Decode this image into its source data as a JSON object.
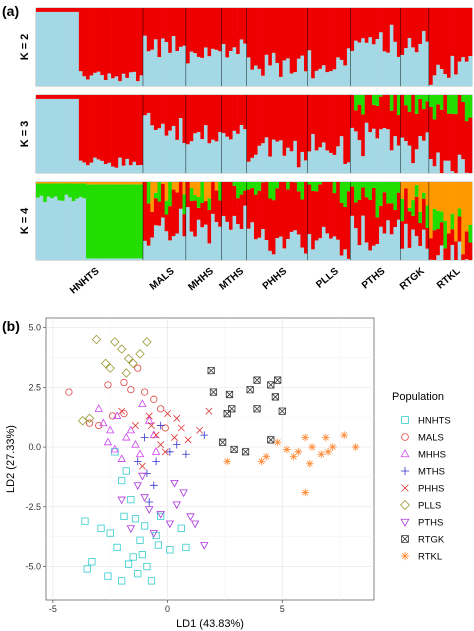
{
  "panel_labels": {
    "a": "(a)",
    "b": "(b)"
  },
  "chart_data": [
    {
      "type": "bar",
      "subtype": "stacked-bar-structure",
      "panel": "(a)",
      "rows": [
        {
          "label": "K = 2",
          "components": 2
        },
        {
          "label": "K = 3",
          "components": 3
        },
        {
          "label": "K = 4",
          "components": 4
        }
      ],
      "populations": [
        {
          "name": "HNHTS",
          "individuals": 30
        },
        {
          "name": "MALS",
          "individuals": 12
        },
        {
          "name": "MHHS",
          "individuals": 10
        },
        {
          "name": "MTHS",
          "individuals": 7
        },
        {
          "name": "PHHS",
          "individuals": 17
        },
        {
          "name": "PLLS",
          "individuals": 12
        },
        {
          "name": "PTHS",
          "individuals": 14
        },
        {
          "name": "RTGK",
          "individuals": 8
        },
        {
          "name": "RTKL",
          "individuals": 12
        }
      ],
      "colors": [
        "#a4d8e4",
        "#ee0000",
        "#22dd00",
        "#ff9900"
      ]
    },
    {
      "type": "scatter",
      "panel": "(b)",
      "xlabel": "LD1 (43.83%)",
      "ylabel": "LD2 (27.33%)",
      "xlim": [
        -5.3,
        9.0
      ],
      "ylim": [
        -6.4,
        5.4
      ],
      "xticks": [
        "-5",
        "0",
        "5"
      ],
      "yticks": [
        "5.0",
        "2.5",
        "0.0",
        "-2.5",
        "-5.0"
      ],
      "legend_title": "Population",
      "legend_position": "right",
      "grid": true,
      "series": [
        {
          "name": "HNHTS",
          "color": "#33cccc",
          "marker": "square",
          "points": [
            [
              -3.6,
              -3.1
            ],
            [
              -3.5,
              -5.1
            ],
            [
              -3.3,
              -4.8
            ],
            [
              -2.9,
              -3.4
            ],
            [
              -2.5,
              -3.6
            ],
            [
              -2.2,
              -4.2
            ],
            [
              -2.6,
              -5.4
            ],
            [
              -2.0,
              -5.6
            ],
            [
              -1.8,
              -1.0
            ],
            [
              -2.0,
              -1.4
            ],
            [
              -1.6,
              -2.2
            ],
            [
              -1.4,
              -3.0
            ],
            [
              -1.2,
              -3.9
            ],
            [
              -1.1,
              -4.5
            ],
            [
              -1.5,
              -4.6
            ],
            [
              -0.9,
              -5.0
            ],
            [
              -1.3,
              -5.3
            ],
            [
              -0.7,
              -5.6
            ],
            [
              -0.4,
              -4.1
            ],
            [
              -0.5,
              -3.7
            ],
            [
              -1.0,
              -3.3
            ],
            [
              -0.3,
              -2.9
            ],
            [
              0.6,
              -3.4
            ],
            [
              0.8,
              -4.2
            ],
            [
              0.1,
              -4.3
            ],
            [
              -1.9,
              -2.9
            ],
            [
              -2.3,
              -0.2
            ],
            [
              -1.7,
              -4.9
            ]
          ]
        },
        {
          "name": "MALS",
          "color": "#dd4444",
          "marker": "circle",
          "points": [
            [
              -4.3,
              2.3
            ],
            [
              -3.4,
              1.0
            ],
            [
              -3.0,
              0.9
            ],
            [
              -2.4,
              1.3
            ],
            [
              -1.9,
              1.4
            ],
            [
              -1.6,
              2.4
            ],
            [
              -1.3,
              3.3
            ],
            [
              -1.0,
              2.3
            ],
            [
              -0.6,
              2.0
            ],
            [
              -0.3,
              1.6
            ],
            [
              -0.1,
              0.8
            ],
            [
              -2.6,
              2.6
            ],
            [
              -1.9,
              2.7
            ]
          ]
        },
        {
          "name": "MHHS",
          "color": "#cc44ee",
          "marker": "triangle-up",
          "points": [
            [
              -3.0,
              1.6
            ],
            [
              -2.8,
              1.0
            ],
            [
              -2.5,
              0.7
            ],
            [
              -2.6,
              0.2
            ],
            [
              -2.3,
              -0.1
            ],
            [
              -2.0,
              -0.5
            ],
            [
              -1.8,
              0.4
            ],
            [
              -1.6,
              0.7
            ],
            [
              -1.4,
              0.1
            ],
            [
              -1.2,
              -0.3
            ],
            [
              -1.1,
              1.8
            ],
            [
              -0.8,
              1.1
            ],
            [
              -0.6,
              0.5
            ],
            [
              -0.5,
              -0.2
            ],
            [
              -2.2,
              1.3
            ]
          ]
        },
        {
          "name": "MTHS",
          "color": "#3333cc",
          "marker": "plus",
          "points": [
            [
              -1.3,
              -0.6
            ],
            [
              -1.0,
              0.4
            ],
            [
              -0.9,
              -1.1
            ],
            [
              -0.8,
              -2.3
            ],
            [
              -0.5,
              -0.6
            ],
            [
              -0.3,
              0.9
            ],
            [
              0.1,
              -0.2
            ],
            [
              0.4,
              0.1
            ],
            [
              0.8,
              -0.3
            ],
            [
              1.6,
              0.5
            ],
            [
              -0.6,
              -1.6
            ]
          ]
        },
        {
          "name": "PHHS",
          "color": "#dd3333",
          "marker": "cross",
          "points": [
            [
              -2.0,
              1.5
            ],
            [
              -1.4,
              0.9
            ],
            [
              -1.1,
              -0.8
            ],
            [
              -0.8,
              1.3
            ],
            [
              -0.5,
              0.5
            ],
            [
              -0.3,
              0.1
            ],
            [
              0.0,
              1.4
            ],
            [
              0.3,
              0.4
            ],
            [
              0.6,
              0.8
            ],
            [
              0.9,
              0.3
            ],
            [
              1.4,
              0.7
            ],
            [
              1.8,
              1.5
            ],
            [
              -0.1,
              -0.2
            ],
            [
              0.4,
              1.2
            ],
            [
              -0.7,
              0.9
            ]
          ]
        },
        {
          "name": "PLLS",
          "color": "#999933",
          "marker": "diamond",
          "points": [
            [
              -3.7,
              1.1
            ],
            [
              -3.4,
              1.2
            ],
            [
              -3.1,
              4.5
            ],
            [
              -2.7,
              3.5
            ],
            [
              -2.5,
              3.3
            ],
            [
              -2.3,
              4.4
            ],
            [
              -2.0,
              4.1
            ],
            [
              -1.7,
              3.7
            ],
            [
              -1.5,
              3.5
            ],
            [
              -1.2,
              3.9
            ],
            [
              -0.9,
              4.4
            ],
            [
              -1.8,
              3.1
            ]
          ]
        },
        {
          "name": "PTHS",
          "color": "#aa33dd",
          "marker": "triangle-down",
          "points": [
            [
              -2.0,
              -2.2
            ],
            [
              -1.6,
              -3.4
            ],
            [
              -1.3,
              -1.6
            ],
            [
              -1.0,
              -2.1
            ],
            [
              -0.8,
              -2.6
            ],
            [
              -0.6,
              -3.6
            ],
            [
              -0.3,
              -2.8
            ],
            [
              0.1,
              -3.2
            ],
            [
              0.4,
              -2.4
            ],
            [
              0.7,
              -1.9
            ],
            [
              1.0,
              -2.9
            ],
            [
              1.2,
              -3.2
            ],
            [
              1.6,
              -4.1
            ],
            [
              -1.1,
              -1.2
            ],
            [
              0.3,
              -1.5
            ]
          ]
        },
        {
          "name": "RTGK",
          "color": "#333333",
          "marker": "square-x",
          "points": [
            [
              1.9,
              3.2
            ],
            [
              2.0,
              2.3
            ],
            [
              2.6,
              1.4
            ],
            [
              2.8,
              1.6
            ],
            [
              2.7,
              2.2
            ],
            [
              3.6,
              2.4
            ],
            [
              3.9,
              1.6
            ],
            [
              3.9,
              2.8
            ],
            [
              4.5,
              2.6
            ],
            [
              4.7,
              2.1
            ],
            [
              4.8,
              2.8
            ],
            [
              5.0,
              1.5
            ],
            [
              2.9,
              -0.1
            ],
            [
              3.4,
              -0.2
            ],
            [
              2.4,
              0.2
            ],
            [
              4.5,
              0.3
            ]
          ]
        },
        {
          "name": "RTKL",
          "color": "#ff8833",
          "marker": "star",
          "points": [
            [
              4.3,
              -0.4
            ],
            [
              4.8,
              0.2
            ],
            [
              5.2,
              -0.1
            ],
            [
              5.5,
              -0.4
            ],
            [
              5.7,
              -0.2
            ],
            [
              6.0,
              0.4
            ],
            [
              6.3,
              0.0
            ],
            [
              6.7,
              -0.3
            ],
            [
              6.9,
              0.4
            ],
            [
              7.2,
              0.0
            ],
            [
              7.7,
              0.5
            ],
            [
              8.2,
              0.0
            ],
            [
              6.0,
              -1.9
            ],
            [
              6.2,
              -0.7
            ],
            [
              7.0,
              -0.2
            ],
            [
              2.6,
              -0.6
            ],
            [
              4.1,
              -0.6
            ]
          ]
        }
      ]
    }
  ]
}
